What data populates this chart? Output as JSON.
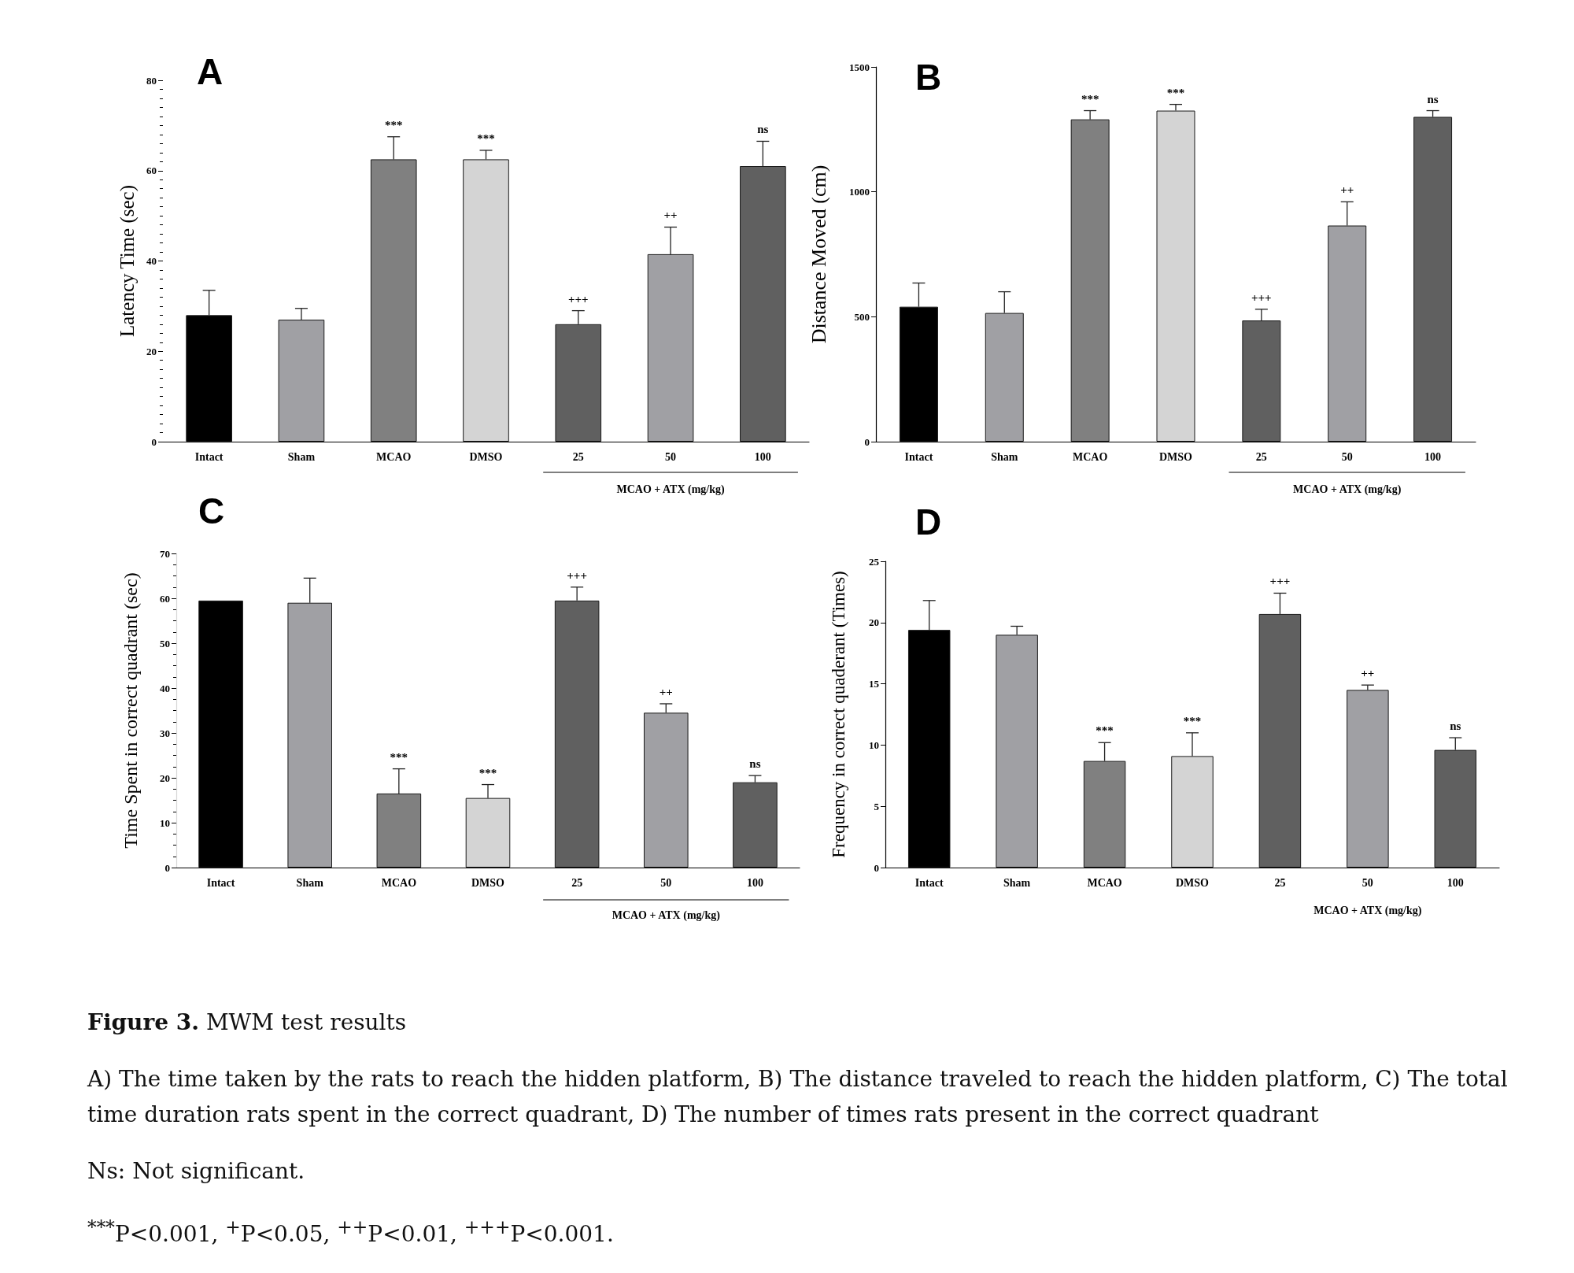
{
  "chart_data": [
    {
      "type": "bar",
      "title": "A",
      "ylabel": "Latency Time (sec)",
      "xlabel": "MCAO + ATX (mg/kg)",
      "categories": [
        "Intact",
        "Sham",
        "MCAO",
        "DMSO",
        "25",
        "50",
        "100"
      ],
      "values": [
        28,
        27,
        62.5,
        62.5,
        26,
        41.5,
        61
      ],
      "colors": [
        "#000000",
        "#a0a0a4",
        "#808080",
        "#d4d4d4",
        "#606060",
        "#a0a0a4",
        "#606060"
      ],
      "errors": [
        [
          28,
          33.5
        ],
        [
          27,
          29.5
        ],
        [
          62.5,
          67.5
        ],
        [
          62.5,
          64.5
        ],
        [
          26,
          29
        ],
        [
          41.5,
          47.5
        ],
        [
          61,
          66.5
        ]
      ],
      "ylim": [
        0,
        80
      ],
      "yticks": [
        0,
        {
          "value": 2,
          "label": null
        },
        {
          "value": 4,
          "label": null
        },
        {
          "value": 6,
          "label": null
        },
        {
          "value": 8,
          "label": null
        },
        {
          "value": 10,
          "label": null
        },
        {
          "value": 12,
          "label": null
        },
        {
          "value": 14,
          "label": null
        },
        {
          "value": 16,
          "label": null
        },
        {
          "value": 18,
          "label": null
        },
        20,
        {
          "value": 22,
          "label": null
        },
        {
          "value": 24,
          "label": null
        },
        {
          "value": 26,
          "label": null
        },
        {
          "value": 28,
          "label": null
        },
        {
          "value": 30,
          "label": null
        },
        {
          "value": 32,
          "label": null
        },
        {
          "value": 34,
          "label": null
        },
        {
          "value": 36,
          "label": null
        },
        {
          "value": 38,
          "label": null
        },
        40,
        {
          "value": 42,
          "label": null
        },
        {
          "value": 44,
          "label": null
        },
        {
          "value": 46,
          "label": null
        },
        {
          "value": 48,
          "label": null
        },
        {
          "value": 50,
          "label": null
        },
        {
          "value": 52,
          "label": null
        },
        {
          "value": 54,
          "label": null
        },
        {
          "value": 56,
          "label": null
        },
        {
          "value": 58,
          "label": null
        },
        60,
        {
          "value": 62,
          "label": null
        },
        {
          "value": 64,
          "label": null
        },
        {
          "value": 66,
          "label": null
        },
        {
          "value": 68,
          "label": null
        },
        {
          "value": 70,
          "label": null
        },
        {
          "value": 72,
          "label": null
        },
        {
          "value": 74,
          "label": null
        },
        {
          "value": 76,
          "label": null
        },
        {
          "value": 78,
          "label": null
        },
        80
      ],
      "annotations": [
        {
          "text": "***",
          "x": "MCAO",
          "y": 62.5
        },
        {
          "text": "***",
          "x": "DMSO",
          "y": 62.5
        },
        {
          "text": "+++",
          "x": "25",
          "y": 26
        },
        {
          "text": "++",
          "x": "50",
          "y": 41.5
        },
        {
          "text": "ns",
          "x": "100",
          "y": 61
        }
      ]
    },
    {
      "type": "bar",
      "title": "B",
      "ylabel": "Distance Moved (cm)",
      "xlabel": "MCAO + ATX (mg/kg)",
      "categories": [
        "Intact",
        "Sham",
        "MCAO",
        "DMSO",
        "25",
        "50",
        "100"
      ],
      "values": [
        540,
        515,
        1290,
        1325,
        485,
        865,
        1300
      ],
      "colors": [
        "#000000",
        "#a0a0a4",
        "#808080",
        "#d4d4d4",
        "#606060",
        "#a0a0a4",
        "#606060"
      ],
      "errors": [
        [
          540,
          635
        ],
        [
          515,
          600
        ],
        [
          1290,
          1325
        ],
        [
          1325,
          1350
        ],
        [
          485,
          530
        ],
        [
          865,
          960
        ],
        [
          1300,
          1325
        ]
      ],
      "ylim": [
        0,
        1500
      ],
      "yticks": [
        0,
        500,
        1000,
        1500
      ],
      "annotations": [
        {
          "text": "***",
          "x": "MCAO",
          "y": 1290
        },
        {
          "text": "***",
          "x": "DMSO",
          "y": 1325
        },
        {
          "text": "+++",
          "x": "25",
          "y": 485
        },
        {
          "text": "++",
          "x": "50",
          "y": 865
        },
        {
          "text": "ns",
          "x": "100",
          "y": 1300
        }
      ]
    },
    {
      "type": "bar",
      "title": "C",
      "ylabel": "Time Spent in correct quadrant (sec)",
      "xlabel": "MCAO + ATX (mg/kg)",
      "categories": [
        "Intact",
        "Sham",
        "MCAO",
        "DMSO",
        "25",
        "50",
        "100"
      ],
      "values": [
        59.5,
        59,
        16.5,
        15.5,
        59.5,
        34.5,
        19
      ],
      "colors": [
        "#000000",
        "#a0a0a4",
        "#808080",
        "#d4d4d4",
        "#606060",
        "#a0a0a4",
        "#606060"
      ],
      "errors": [
        null,
        [
          59,
          64.5
        ],
        [
          16.5,
          22
        ],
        [
          15.5,
          18.5
        ],
        [
          59.5,
          62.5
        ],
        [
          34.5,
          36.5
        ],
        [
          19,
          20.5
        ]
      ],
      "ylim": [
        0,
        70
      ],
      "yticks": [
        0,
        {
          "value": 2.5,
          "label": null
        },
        {
          "value": 5,
          "label": null
        },
        {
          "value": 7.5,
          "label": null
        },
        10,
        {
          "value": 12.5,
          "label": null
        },
        {
          "value": 15,
          "label": null
        },
        {
          "value": 17.5,
          "label": null
        },
        20,
        {
          "value": 22.5,
          "label": null
        },
        {
          "value": 25,
          "label": null
        },
        {
          "value": 27.5,
          "label": null
        },
        30,
        {
          "value": 32.5,
          "label": null
        },
        {
          "value": 35,
          "label": null
        },
        {
          "value": 37.5,
          "label": null
        },
        40,
        {
          "value": 42.5,
          "label": null
        },
        {
          "value": 45,
          "label": null
        },
        {
          "value": 47.5,
          "label": null
        },
        50,
        {
          "value": 52.5,
          "label": null
        },
        {
          "value": 55,
          "label": null
        },
        {
          "value": 57.5,
          "label": null
        },
        60,
        {
          "value": 62.5,
          "label": null
        },
        {
          "value": 65,
          "label": null
        },
        {
          "value": 67.5,
          "label": null
        },
        70
      ],
      "annotations": [
        {
          "text": "***",
          "x": "MCAO",
          "y": 16.5
        },
        {
          "text": "***",
          "x": "DMSO",
          "y": 15.5
        },
        {
          "text": "+++",
          "x": "25",
          "y": 59.5
        },
        {
          "text": "++",
          "x": "50",
          "y": 34.5
        },
        {
          "text": "ns",
          "x": "100",
          "y": 19
        }
      ]
    },
    {
      "type": "bar",
      "title": "D",
      "ylabel": "Frequency in correct quaderant (Times)",
      "xlabel": "MCAO + ATX (mg/kg)",
      "categories": [
        "Intact",
        "Sham",
        "MCAO",
        "DMSO",
        "25",
        "50",
        "100"
      ],
      "values": [
        19.4,
        19,
        8.7,
        9.1,
        20.7,
        14.5,
        9.6
      ],
      "colors": [
        "#000000",
        "#a0a0a4",
        "#808080",
        "#d4d4d4",
        "#606060",
        "#a0a0a4",
        "#606060"
      ],
      "errors": [
        [
          19.4,
          21.8
        ],
        [
          19,
          19.7
        ],
        [
          8.7,
          10.2
        ],
        [
          9.1,
          11
        ],
        [
          20.7,
          22.4
        ],
        [
          14.5,
          14.9
        ],
        [
          9.6,
          10.6
        ]
      ],
      "ylim": [
        0,
        25
      ],
      "yticks": [
        0,
        5,
        10,
        15,
        20,
        25
      ],
      "annotations": [
        {
          "text": "***",
          "x": "MCAO",
          "y": 8.7
        },
        {
          "text": "***",
          "x": "DMSO",
          "y": 9.1
        },
        {
          "text": "+++",
          "x": "25",
          "y": 20.7
        },
        {
          "text": "++",
          "x": "50",
          "y": 14.5
        },
        {
          "text": "ns",
          "x": "100",
          "y": 9.6
        }
      ]
    },
    {
      "type": "other",
      "title": "Figure 3. MWM test results",
      "annotations": [
        "A) The time taken by the rats to reach the hidden platform, B) The distance traveled to reach the hidden platform, C) The total time duration rats spent in the correct quadrant, D) The number of times rats present in the correct quadrant",
        "Ns: Not significant.",
        "$^{***}$P<0.001, $^{+}$P<0.05, $^{++}$P<0.01, $^{+++}$P<0.001."
      ]
    }
  ]
}
